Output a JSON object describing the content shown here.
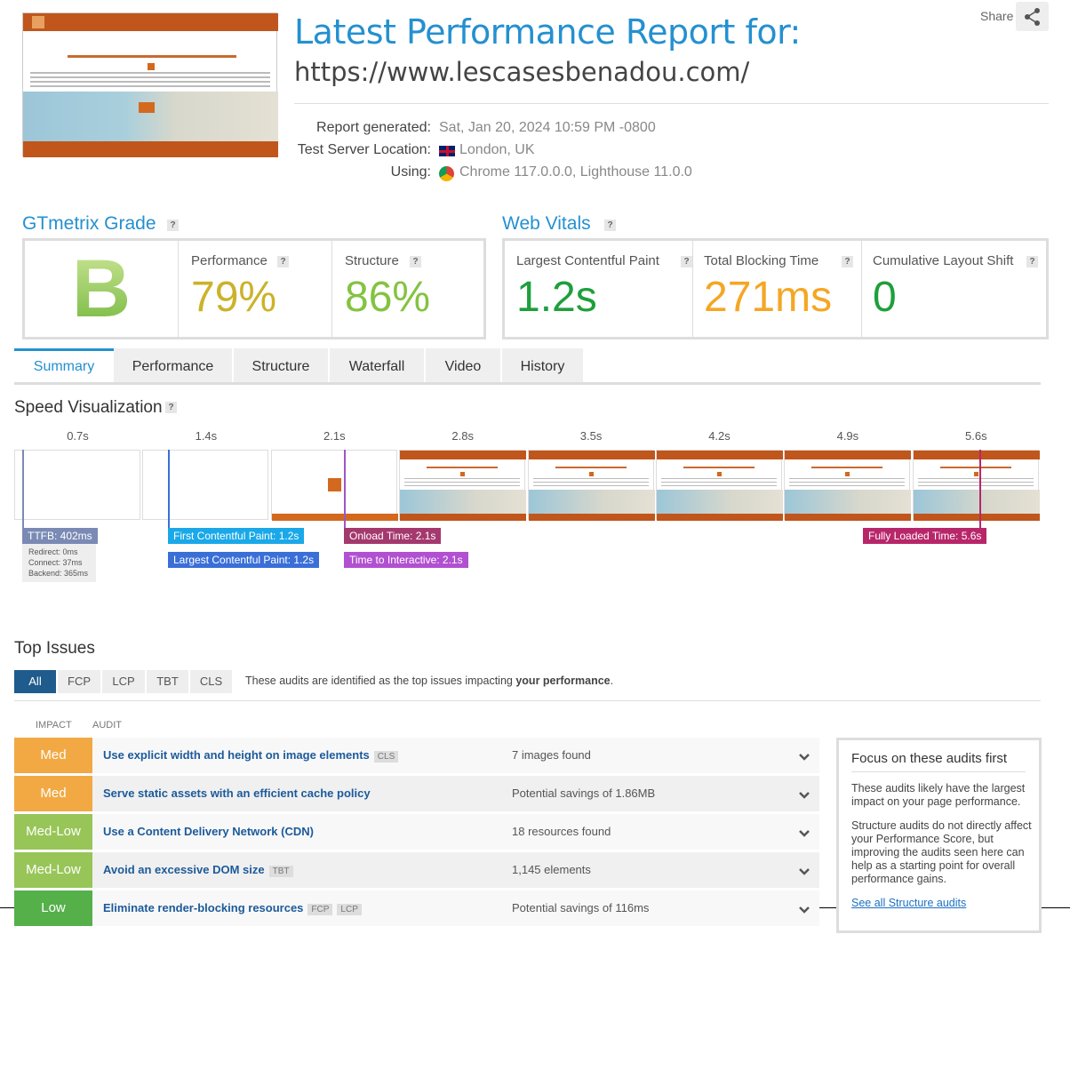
{
  "header": {
    "title": "Latest Performance Report for:",
    "url": "https://www.lescasesbenadou.com/",
    "share": "Share"
  },
  "help_icon": "?",
  "meta": [
    {
      "label": "Report generated:",
      "value": "Sat, Jan 20, 2024 10:59 PM -0800"
    },
    {
      "label": "Test Server Location:",
      "value": "London, UK"
    },
    {
      "label": "Using:",
      "value": "Chrome 117.0.0.0, Lighthouse 11.0.0"
    }
  ],
  "grade": {
    "title": "GTmetrix Grade",
    "letter": "B",
    "metrics": [
      {
        "label": "Performance",
        "value": "79%"
      },
      {
        "label": "Structure",
        "value": "86%"
      }
    ]
  },
  "vitals": {
    "title": "Web Vitals",
    "metrics": [
      {
        "label": "Largest Contentful Paint",
        "value": "1.2s"
      },
      {
        "label": "Total Blocking Time",
        "value": "271ms"
      },
      {
        "label": "Cumulative Layout Shift",
        "value": "0"
      }
    ]
  },
  "tabs": [
    "Summary",
    "Performance",
    "Structure",
    "Waterfall",
    "Video",
    "History"
  ],
  "speed": {
    "title": "Speed Visualization",
    "times": [
      "0.7s",
      "1.4s",
      "2.1s",
      "2.8s",
      "3.5s",
      "4.2s",
      "4.9s",
      "5.6s"
    ],
    "markers": [
      {
        "label": "TTFB: 402ms"
      },
      {
        "label": "First Contentful Paint: 1.2s"
      },
      {
        "label": "Largest Contentful Paint: 1.2s"
      },
      {
        "label": "Onload Time: 2.1s"
      },
      {
        "label": "Time to Interactive: 2.1s"
      },
      {
        "label": "Fully Loaded Time: 5.6s"
      }
    ],
    "ttfb_details": [
      "Redirect: 0ms",
      "Connect: 37ms",
      "Backend: 365ms"
    ]
  },
  "issues": {
    "title": "Top Issues",
    "filters": [
      "All",
      "FCP",
      "LCP",
      "TBT",
      "CLS"
    ],
    "note": "These audits are identified as the top issues impacting ",
    "note_bold": "your performance",
    "note_end": ".",
    "headers": [
      "IMPACT",
      "AUDIT"
    ],
    "rows": [
      {
        "impact": "Med",
        "audit": "Use explicit width and height on image elements",
        "tags": [
          "CLS"
        ],
        "detail": "7 images found"
      },
      {
        "impact": "Med",
        "audit": "Serve static assets with an efficient cache policy",
        "tags": [],
        "detail": "Potential savings of 1.86MB"
      },
      {
        "impact": "Med-Low",
        "audit": "Use a Content Delivery Network (CDN)",
        "tags": [],
        "detail": "18 resources found"
      },
      {
        "impact": "Med-Low",
        "audit": "Avoid an excessive DOM size",
        "tags": [
          "TBT"
        ],
        "detail": "1,145 elements"
      },
      {
        "impact": "Low",
        "audit": "Eliminate render-blocking resources",
        "tags": [
          "FCP",
          "LCP"
        ],
        "detail": "Potential savings of 116ms"
      }
    ]
  },
  "focus": {
    "title": "Focus on these audits first",
    "paragraphs": [
      "These audits likely have the largest impact on your page performance.",
      "Structure audits do not directly affect your Performance Score, but improving the audits seen here can help as a starting point for overall performance gains."
    ],
    "link": "See all Structure audits"
  }
}
